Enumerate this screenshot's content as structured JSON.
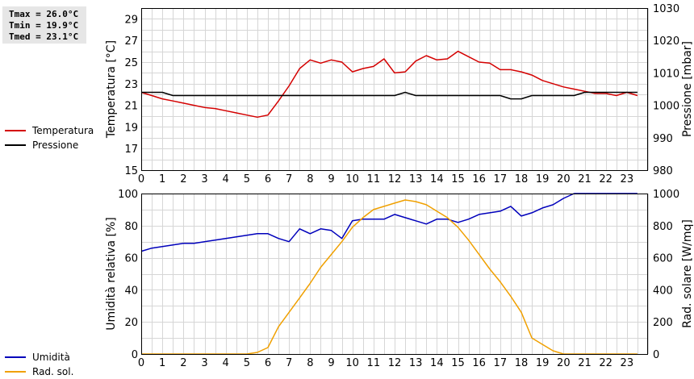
{
  "stats": {
    "tmax": "Tmax = 26.0°C",
    "tmin": "Tmin = 19.9°C",
    "tmed": "Tmed = 23.1°C"
  },
  "legend_top": [
    {
      "label": "Temperatura",
      "color": "#d40000"
    },
    {
      "label": "Pressione",
      "color": "#000000"
    }
  ],
  "legend_bottom": [
    {
      "label": "Umidità",
      "color": "#0000bb"
    },
    {
      "label": "Rad. sol.",
      "color": "#f0a000"
    }
  ],
  "chart_data": [
    {
      "type": "line",
      "ylabel": "Temperatura [°C]",
      "y2label": "Pressione [mbar]",
      "xlim": [
        0,
        24
      ],
      "ylim": [
        15,
        30
      ],
      "y2lim": [
        980,
        1030
      ],
      "grid": true,
      "x_ticks": [
        "0",
        "1",
        "2",
        "3",
        "4",
        "5",
        "6",
        "7",
        "8",
        "9",
        "10",
        "11",
        "12",
        "13",
        "14",
        "15",
        "16",
        "17",
        "18",
        "19",
        "20",
        "21",
        "22",
        "23"
      ],
      "y_ticks": [
        "15",
        "17",
        "19",
        "21",
        "23",
        "25",
        "27",
        "29"
      ],
      "y2_ticks": [
        "980",
        "990",
        "1000",
        "1010",
        "1020",
        "1030"
      ],
      "series": [
        {
          "name": "Temperatura",
          "axis": "left",
          "color": "#d40000",
          "x": [
            0,
            0.5,
            1,
            1.5,
            2,
            2.5,
            3,
            3.5,
            4,
            4.5,
            5,
            5.5,
            6,
            6.5,
            7,
            7.5,
            8,
            8.5,
            9,
            9.5,
            10,
            10.5,
            11,
            11.5,
            12,
            12.5,
            13,
            13.5,
            14,
            14.5,
            15,
            15.5,
            16,
            16.5,
            17,
            17.5,
            18,
            18.5,
            19,
            19.5,
            20,
            20.5,
            21,
            21.5,
            22,
            22.5,
            23,
            23.5
          ],
          "y": [
            22.2,
            21.9,
            21.6,
            21.4,
            21.2,
            21.0,
            20.8,
            20.7,
            20.5,
            20.3,
            20.1,
            19.9,
            20.1,
            21.4,
            22.8,
            24.4,
            25.2,
            24.9,
            25.2,
            25.0,
            24.1,
            24.4,
            24.6,
            25.3,
            24.0,
            24.1,
            25.1,
            25.6,
            25.2,
            25.3,
            26.0,
            25.5,
            25.0,
            24.9,
            24.3,
            24.3,
            24.1,
            23.8,
            23.3,
            23.0,
            22.7,
            22.5,
            22.3,
            22.1,
            22.1,
            21.9,
            22.2,
            21.9
          ]
        },
        {
          "name": "Pressione",
          "axis": "right",
          "color": "#000000",
          "x": [
            0,
            0.5,
            1,
            1.5,
            2,
            2.5,
            3,
            3.5,
            4,
            4.5,
            5,
            5.5,
            6,
            6.5,
            7,
            7.5,
            8,
            8.5,
            9,
            9.5,
            10,
            10.5,
            11,
            11.5,
            12,
            12.5,
            13,
            13.5,
            14,
            14.5,
            15,
            15.5,
            16,
            16.5,
            17,
            17.5,
            18,
            18.5,
            19,
            19.5,
            20,
            20.5,
            21,
            21.5,
            22,
            22.5,
            23,
            23.5
          ],
          "y": [
            1004,
            1004,
            1004,
            1003,
            1003,
            1003,
            1003,
            1003,
            1003,
            1003,
            1003,
            1003,
            1003,
            1003,
            1003,
            1003,
            1003,
            1003,
            1003,
            1003,
            1003,
            1003,
            1003,
            1003,
            1003,
            1004,
            1003,
            1003,
            1003,
            1003,
            1003,
            1003,
            1003,
            1003,
            1003,
            1002,
            1002,
            1003,
            1003,
            1003,
            1003,
            1003,
            1004,
            1004,
            1004,
            1004,
            1004,
            1004
          ]
        }
      ]
    },
    {
      "type": "line",
      "ylabel": "Umidità relativa [%]",
      "y2label": "Rad. solare [W/mq]",
      "xlim": [
        0,
        24
      ],
      "ylim": [
        0,
        100
      ],
      "y2lim": [
        0,
        1000
      ],
      "grid": true,
      "x_ticks": [
        "0",
        "1",
        "2",
        "3",
        "4",
        "5",
        "6",
        "7",
        "8",
        "9",
        "10",
        "11",
        "12",
        "13",
        "14",
        "15",
        "16",
        "17",
        "18",
        "19",
        "20",
        "21",
        "22",
        "23"
      ],
      "y_ticks": [
        "0",
        "20",
        "40",
        "60",
        "80",
        "100"
      ],
      "y2_ticks": [
        "0",
        "200",
        "400",
        "600",
        "800",
        "1000"
      ],
      "series": [
        {
          "name": "Umidità",
          "axis": "left",
          "color": "#0000bb",
          "x": [
            0,
            0.5,
            1,
            1.5,
            2,
            2.5,
            3,
            3.5,
            4,
            4.5,
            5,
            5.5,
            6,
            6.5,
            7,
            7.5,
            8,
            8.5,
            9,
            9.5,
            10,
            10.5,
            11,
            11.5,
            12,
            12.5,
            13,
            13.5,
            14,
            14.5,
            15,
            15.5,
            16,
            16.5,
            17,
            17.5,
            18,
            18.5,
            19,
            19.5,
            20,
            20.5,
            21,
            21.5,
            22,
            22.5,
            23,
            23.5
          ],
          "y": [
            64,
            66,
            67,
            68,
            69,
            69,
            70,
            71,
            72,
            73,
            74,
            75,
            75,
            72,
            70,
            78,
            75,
            78,
            77,
            72,
            83,
            84,
            84,
            84,
            87,
            85,
            83,
            81,
            84,
            84,
            82,
            84,
            87,
            88,
            89,
            92,
            86,
            88,
            91,
            93,
            97,
            100,
            100,
            100,
            100,
            100,
            100,
            100
          ]
        },
        {
          "name": "Rad. sol.",
          "axis": "right",
          "color": "#f0a000",
          "x": [
            0,
            0.5,
            1,
            1.5,
            2,
            2.5,
            3,
            3.5,
            4,
            4.5,
            5,
            5.5,
            6,
            6.5,
            7,
            7.5,
            8,
            8.5,
            9,
            9.5,
            10,
            10.5,
            11,
            11.5,
            12,
            12.5,
            13,
            13.5,
            14,
            14.5,
            15,
            15.5,
            16,
            16.5,
            17,
            17.5,
            18,
            18.5,
            19,
            19.5,
            20,
            20.5,
            21,
            21.5,
            22,
            22.5,
            23,
            23.5
          ],
          "y": [
            0,
            0,
            0,
            0,
            0,
            0,
            0,
            0,
            0,
            0,
            0,
            10,
            40,
            170,
            260,
            350,
            440,
            540,
            620,
            700,
            790,
            850,
            900,
            920,
            940,
            960,
            950,
            930,
            890,
            850,
            790,
            710,
            620,
            530,
            450,
            360,
            260,
            100,
            60,
            20,
            0,
            0,
            0,
            0,
            0,
            0,
            0,
            0
          ]
        }
      ]
    }
  ]
}
